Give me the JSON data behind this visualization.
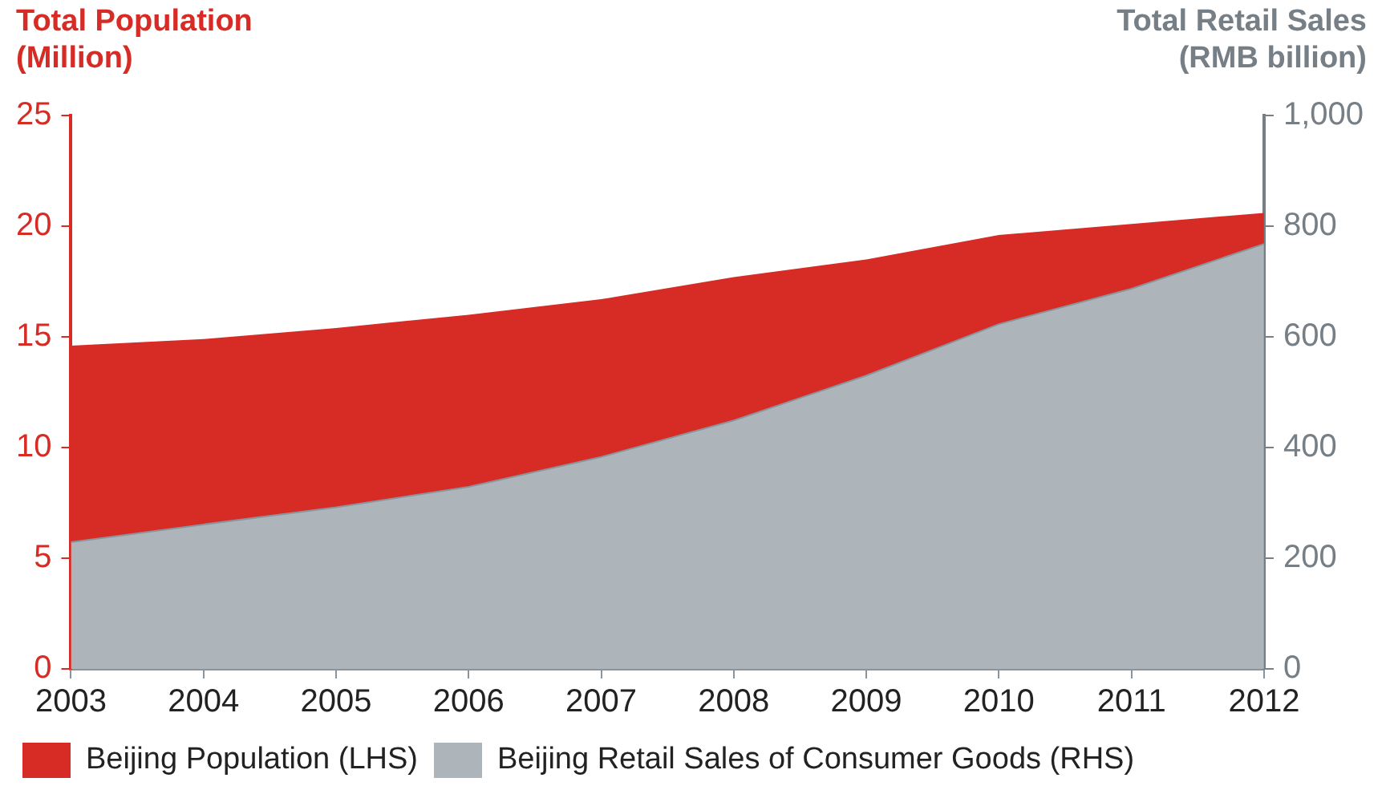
{
  "chart_data": {
    "type": "area",
    "ylabel": "Total Population\n(Million)",
    "y2label": "Total Retail Sales\n(RMB billion)",
    "categories": [
      "2003",
      "2004",
      "2005",
      "2006",
      "2007",
      "2008",
      "2009",
      "2010",
      "2011",
      "2012"
    ],
    "series": [
      {
        "name": "Beijing Population (LHS)",
        "color": "#d72b25",
        "values": [
          14.6,
          14.9,
          15.4,
          16.0,
          16.7,
          17.7,
          18.5,
          19.6,
          20.1,
          20.6
        ]
      },
      {
        "name": "Beijing Retail Sales of Consumer Goods (RHS)",
        "color": "#adb4ba",
        "axis": "y2",
        "values": [
          229,
          261,
          292,
          329,
          383,
          449,
          530,
          623,
          687,
          768
        ]
      }
    ],
    "ylim": [
      0,
      25
    ],
    "yticks": [
      0,
      5,
      10,
      15,
      20,
      25
    ],
    "y2lim": [
      0,
      1000
    ],
    "y2ticks": [
      0,
      200,
      400,
      600,
      800,
      {
        "value": 1000,
        "label": "1,000"
      }
    ],
    "grid": false,
    "legend": "bottom"
  }
}
